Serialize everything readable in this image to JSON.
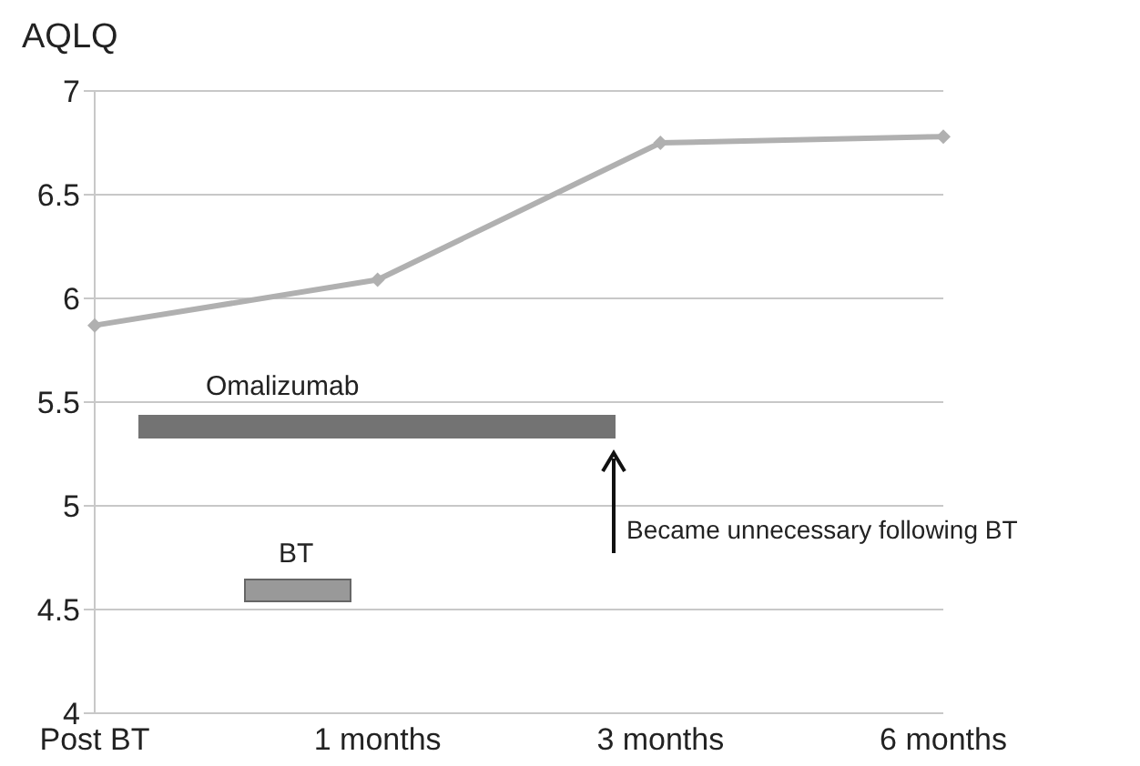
{
  "chart_data": {
    "type": "line",
    "ylabel": "AQLQ",
    "categories": [
      "Post BT",
      "1 months",
      "3 months",
      "6 months"
    ],
    "series": [
      {
        "color": "#b0b0b0",
        "values": [
          5.87,
          6.09,
          6.75,
          6.78
        ]
      }
    ],
    "ylim": [
      4,
      7
    ],
    "yticks": [
      4,
      4.5,
      5,
      5.5,
      6,
      6.5,
      7
    ],
    "grid": "y",
    "legend": false,
    "marker": "diamond",
    "line_style": "solid",
    "annotations": [
      "Omalizumab",
      "BT",
      "Became unnecessary following BT"
    ]
  }
}
